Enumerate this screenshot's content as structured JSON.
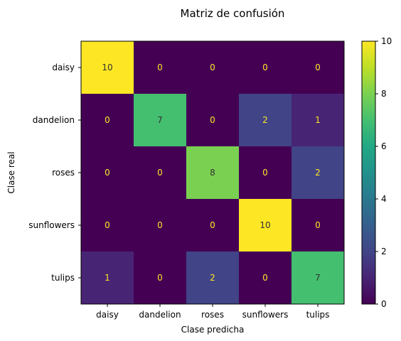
{
  "chart_data": {
    "type": "heatmap",
    "title": "Matriz de confusión",
    "xlabel": "Clase predicha",
    "ylabel": "Clase real",
    "x_categories": [
      "daisy",
      "dandelion",
      "roses",
      "sunflowers",
      "tulips"
    ],
    "y_categories": [
      "daisy",
      "dandelion",
      "roses",
      "sunflowers",
      "tulips"
    ],
    "values": [
      [
        10,
        0,
        0,
        0,
        0
      ],
      [
        0,
        7,
        0,
        2,
        1
      ],
      [
        0,
        0,
        8,
        0,
        2
      ],
      [
        0,
        0,
        0,
        10,
        0
      ],
      [
        1,
        0,
        2,
        0,
        7
      ]
    ],
    "colormap": "viridis",
    "vmin": 0,
    "vmax": 10,
    "colorbar_ticks": [
      0,
      2,
      4,
      6,
      8,
      10
    ],
    "annotation_color_dark_cell": "#fde725",
    "annotation_color_light_cell": "#333333"
  }
}
